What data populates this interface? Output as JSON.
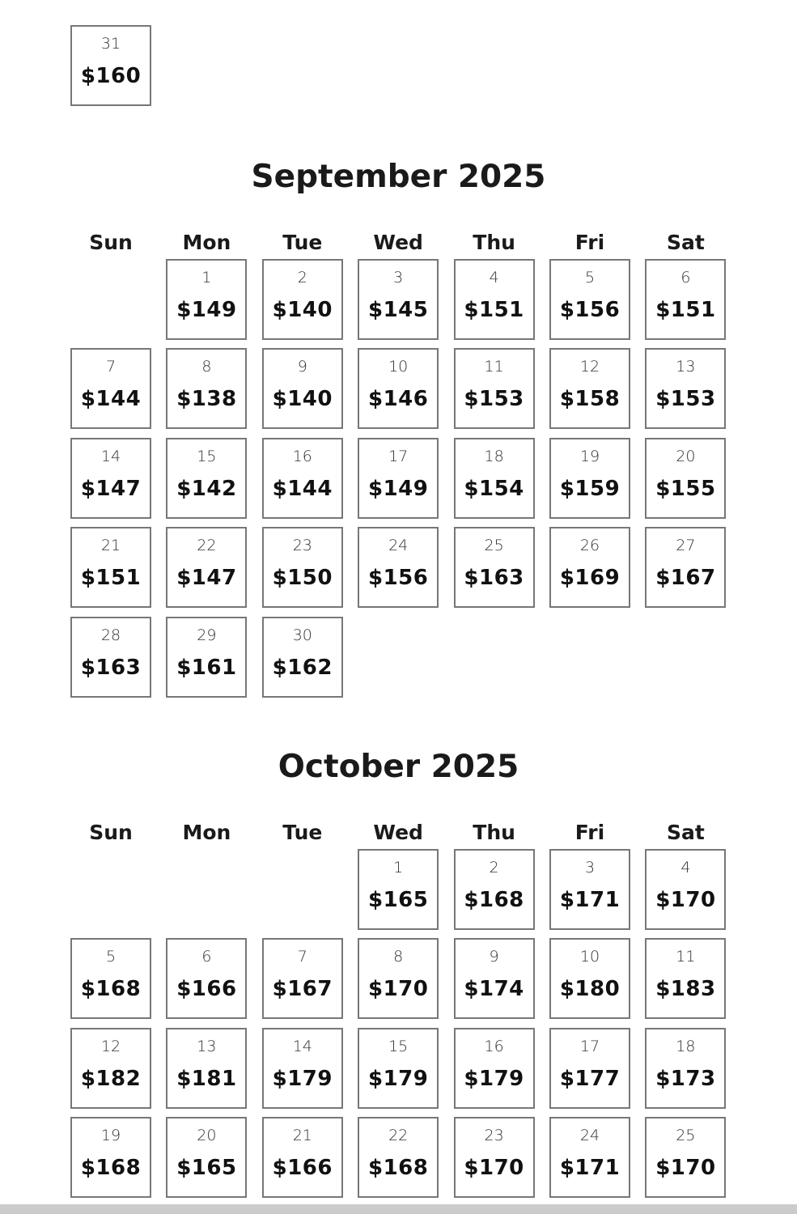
{
  "prev_month_tail": [
    {
      "day": "31",
      "price": "$160"
    }
  ],
  "weekdays": [
    "Sun",
    "Mon",
    "Tue",
    "Wed",
    "Thu",
    "Fri",
    "Sat"
  ],
  "months": [
    {
      "title": "September 2025",
      "start_weekday": "Mon",
      "days": [
        {
          "day": "1",
          "price": "$149"
        },
        {
          "day": "2",
          "price": "$140"
        },
        {
          "day": "3",
          "price": "$145"
        },
        {
          "day": "4",
          "price": "$151"
        },
        {
          "day": "5",
          "price": "$156"
        },
        {
          "day": "6",
          "price": "$151"
        },
        {
          "day": "7",
          "price": "$144"
        },
        {
          "day": "8",
          "price": "$138"
        },
        {
          "day": "9",
          "price": "$140"
        },
        {
          "day": "10",
          "price": "$146"
        },
        {
          "day": "11",
          "price": "$153"
        },
        {
          "day": "12",
          "price": "$158"
        },
        {
          "day": "13",
          "price": "$153"
        },
        {
          "day": "14",
          "price": "$147"
        },
        {
          "day": "15",
          "price": "$142"
        },
        {
          "day": "16",
          "price": "$144"
        },
        {
          "day": "17",
          "price": "$149"
        },
        {
          "day": "18",
          "price": "$154"
        },
        {
          "day": "19",
          "price": "$159"
        },
        {
          "day": "20",
          "price": "$155"
        },
        {
          "day": "21",
          "price": "$151"
        },
        {
          "day": "22",
          "price": "$147"
        },
        {
          "day": "23",
          "price": "$150"
        },
        {
          "day": "24",
          "price": "$156"
        },
        {
          "day": "25",
          "price": "$163"
        },
        {
          "day": "26",
          "price": "$169"
        },
        {
          "day": "27",
          "price": "$167"
        },
        {
          "day": "28",
          "price": "$163"
        },
        {
          "day": "29",
          "price": "$161"
        },
        {
          "day": "30",
          "price": "$162"
        }
      ]
    },
    {
      "title": "October 2025",
      "start_weekday": "Wed",
      "days": [
        {
          "day": "1",
          "price": "$165"
        },
        {
          "day": "2",
          "price": "$168"
        },
        {
          "day": "3",
          "price": "$171"
        },
        {
          "day": "4",
          "price": "$170"
        },
        {
          "day": "5",
          "price": "$168"
        },
        {
          "day": "6",
          "price": "$166"
        },
        {
          "day": "7",
          "price": "$167"
        },
        {
          "day": "8",
          "price": "$170"
        },
        {
          "day": "9",
          "price": "$174"
        },
        {
          "day": "10",
          "price": "$180"
        },
        {
          "day": "11",
          "price": "$183"
        },
        {
          "day": "12",
          "price": "$182"
        },
        {
          "day": "13",
          "price": "$181"
        },
        {
          "day": "14",
          "price": "$179"
        },
        {
          "day": "15",
          "price": "$179"
        },
        {
          "day": "16",
          "price": "$179"
        },
        {
          "day": "17",
          "price": "$177"
        },
        {
          "day": "18",
          "price": "$173"
        },
        {
          "day": "19",
          "price": "$168"
        },
        {
          "day": "20",
          "price": "$165"
        },
        {
          "day": "21",
          "price": "$166"
        },
        {
          "day": "22",
          "price": "$168"
        },
        {
          "day": "23",
          "price": "$170"
        },
        {
          "day": "24",
          "price": "$171"
        },
        {
          "day": "25",
          "price": "$170"
        }
      ]
    }
  ]
}
